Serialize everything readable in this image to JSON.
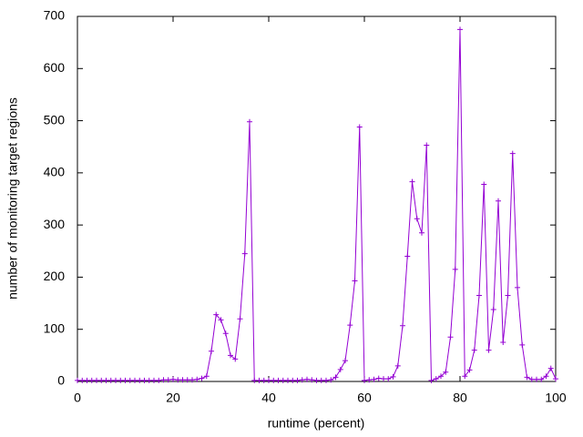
{
  "chart_data": {
    "type": "line",
    "xlabel": "runtime (percent)",
    "ylabel": "number of monitoring target regions",
    "x": [
      0,
      1,
      2,
      3,
      4,
      5,
      6,
      7,
      8,
      9,
      10,
      11,
      12,
      13,
      14,
      15,
      16,
      17,
      18,
      19,
      20,
      21,
      22,
      23,
      24,
      25,
      26,
      27,
      28,
      29,
      30,
      31,
      32,
      33,
      34,
      35,
      36,
      37,
      38,
      39,
      40,
      41,
      42,
      43,
      44,
      45,
      46,
      47,
      48,
      49,
      50,
      51,
      52,
      53,
      54,
      55,
      56,
      57,
      58,
      59,
      60,
      61,
      62,
      63,
      64,
      65,
      66,
      67,
      68,
      69,
      70,
      71,
      72,
      73,
      74,
      75,
      76,
      77,
      78,
      79,
      80,
      81,
      82,
      83,
      84,
      85,
      86,
      87,
      88,
      89,
      90,
      91,
      92,
      93,
      94,
      95,
      96,
      97,
      98,
      99,
      100
    ],
    "series": [
      {
        "color": "#9400d3",
        "values": [
          2,
          2,
          2,
          2,
          2,
          2,
          2,
          2,
          2,
          2,
          2,
          2,
          2,
          2,
          2,
          2,
          2,
          2,
          3,
          3,
          4,
          3,
          3,
          3,
          3,
          4,
          6,
          10,
          58,
          128,
          118,
          92,
          50,
          43,
          120,
          245,
          498,
          2,
          2,
          2,
          2,
          2,
          2,
          2,
          2,
          2,
          2,
          3,
          4,
          3,
          2,
          2,
          2,
          3,
          8,
          23,
          40,
          108,
          193,
          488,
          2,
          3,
          4,
          6,
          5,
          5,
          9,
          30,
          107,
          240,
          383,
          312,
          285,
          453,
          2,
          5,
          10,
          18,
          85,
          215,
          675,
          10,
          22,
          60,
          165,
          378,
          60,
          138,
          346,
          75,
          165,
          437,
          180,
          70,
          8,
          4,
          4,
          4,
          10,
          25,
          5
        ]
      }
    ],
    "xlim": [
      0,
      100
    ],
    "xticks": [
      0,
      20,
      40,
      60,
      80,
      100
    ],
    "ylim": [
      0,
      700
    ],
    "yticks": [
      0,
      100,
      200,
      300,
      400,
      500,
      600,
      700
    ]
  }
}
